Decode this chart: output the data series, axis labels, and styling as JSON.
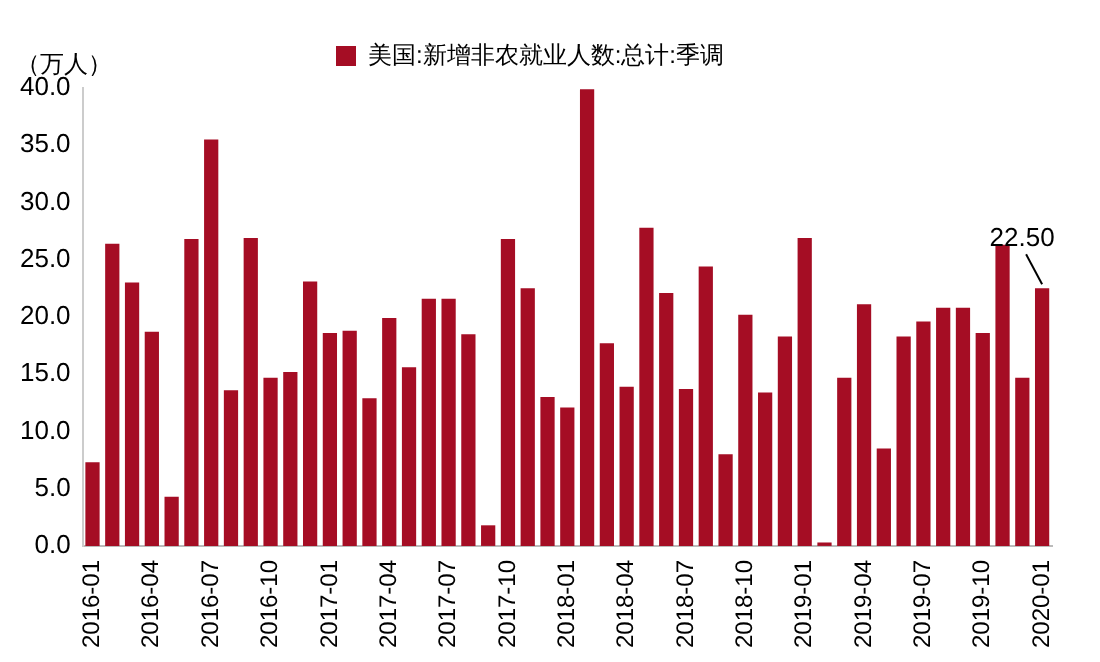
{
  "chart_data": {
    "type": "bar",
    "ylabel": "（万人）",
    "categories": [
      "2016-01",
      null,
      null,
      "2016-04",
      null,
      null,
      "2016-07",
      null,
      null,
      "2016-10",
      null,
      null,
      "2017-01",
      null,
      null,
      "2017-04",
      null,
      null,
      "2017-07",
      null,
      null,
      "2017-10",
      null,
      null,
      "2018-01",
      null,
      null,
      "2018-04",
      null,
      null,
      "2018-07",
      null,
      null,
      "2018-10",
      null,
      null,
      "2019-01",
      null,
      null,
      "2019-04",
      null,
      null,
      "2019-07",
      null,
      null,
      "2019-10",
      null,
      null,
      "2020-01"
    ],
    "series": [
      {
        "name": "美国:新增非农就业人数:总计:季调",
        "color": "#a50d24",
        "values": [
          7.3,
          26.4,
          23.0,
          18.7,
          4.3,
          26.8,
          35.5,
          13.6,
          26.9,
          14.7,
          15.2,
          23.1,
          18.6,
          18.8,
          12.9,
          19.9,
          15.6,
          21.6,
          21.6,
          18.5,
          1.8,
          26.8,
          22.5,
          13.0,
          12.1,
          39.9,
          17.7,
          13.9,
          27.8,
          22.1,
          13.7,
          24.4,
          8.0,
          20.2,
          13.4,
          18.3,
          26.9,
          0.3,
          14.7,
          21.1,
          8.5,
          18.3,
          19.6,
          20.8,
          20.8,
          18.6,
          26.3,
          14.7,
          22.5
        ]
      }
    ],
    "ylim": [
      0,
      40
    ],
    "yticks": [
      {
        "value": 0,
        "label": "0.0"
      },
      {
        "value": 5,
        "label": "5.0"
      },
      {
        "value": 10,
        "label": "10.0"
      },
      {
        "value": 15,
        "label": "15.0"
      },
      {
        "value": 20,
        "label": "20.0"
      },
      {
        "value": 25,
        "label": "25.0"
      },
      {
        "value": 30,
        "label": "30.0"
      },
      {
        "value": 35,
        "label": "35.0"
      },
      {
        "value": 40,
        "label": "40.0"
      }
    ],
    "grid": false,
    "legend": "top",
    "annotations": [
      {
        "text": "22.50",
        "x": "2020-01",
        "y": 22.5
      }
    ]
  }
}
